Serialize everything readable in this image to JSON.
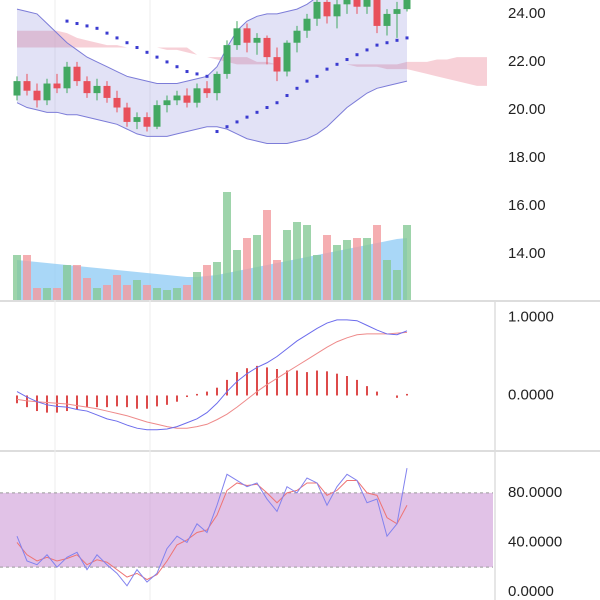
{
  "chart_data": [
    {
      "type": "candlestick",
      "ylim": [
        12.08,
        24.58
      ],
      "yticks": [
        {
          "value": 14,
          "label": "14.00"
        },
        {
          "value": 16,
          "label": "16.00"
        },
        {
          "value": 18,
          "label": "18.00"
        },
        {
          "value": 20,
          "label": "20.00"
        },
        {
          "value": 22,
          "label": "22.00"
        },
        {
          "value": 24,
          "label": "24.00"
        }
      ],
      "up_color": "#43a862",
      "down_color": "#e8505b",
      "open": [
        20.6,
        21.2,
        20.8,
        20.4,
        21.1,
        20.9,
        21.8,
        21.2,
        20.7,
        21.0,
        20.5,
        20.1,
        19.5,
        19.7,
        19.3,
        20.2,
        20.4,
        20.6,
        20.3,
        20.9,
        20.7,
        21.5,
        22.7,
        23.4,
        22.8,
        23.0,
        22.2,
        21.6,
        22.8,
        23.3,
        23.8,
        24.5,
        23.9,
        24.4,
        24.6,
        24.3,
        24.6,
        23.5,
        24.0,
        24.2
      ],
      "high": [
        21.4,
        21.5,
        21.1,
        21.3,
        21.5,
        22.0,
        22.0,
        21.4,
        21.3,
        21.2,
        20.8,
        20.3,
        19.9,
        19.9,
        20.4,
        20.6,
        20.8,
        20.9,
        21.1,
        21.2,
        21.6,
        22.9,
        23.7,
        23.6,
        23.2,
        23.1,
        22.6,
        22.9,
        23.5,
        24.0,
        24.8,
        24.8,
        24.7,
        24.9,
        24.9,
        24.8,
        24.8,
        24.2,
        24.5,
        24.9
      ],
      "low": [
        20.4,
        20.6,
        20.1,
        20.2,
        20.7,
        20.7,
        21.0,
        20.5,
        20.4,
        20.3,
        19.9,
        19.3,
        19.2,
        19.1,
        19.2,
        19.9,
        20.2,
        20.1,
        20.1,
        20.5,
        20.4,
        21.3,
        22.5,
        22.4,
        22.3,
        21.9,
        21.2,
        21.4,
        22.4,
        23.0,
        23.5,
        23.6,
        23.4,
        24.0,
        24.0,
        24.0,
        23.2,
        23.1,
        23.0,
        24.1
      ],
      "close": [
        21.2,
        20.8,
        20.4,
        21.1,
        20.9,
        21.8,
        21.2,
        20.7,
        21.0,
        20.5,
        20.1,
        19.5,
        19.7,
        19.3,
        20.2,
        20.4,
        20.6,
        20.3,
        20.9,
        20.7,
        21.5,
        22.7,
        23.4,
        22.8,
        23.0,
        22.2,
        21.6,
        22.8,
        23.3,
        23.8,
        24.5,
        23.9,
        24.4,
        24.6,
        24.3,
        24.6,
        23.5,
        24.0,
        24.2,
        24.7
      ],
      "volume": [
        45,
        45,
        12,
        12,
        12,
        35,
        35,
        22,
        12,
        15,
        25,
        15,
        20,
        15,
        12,
        10,
        12,
        15,
        28,
        35,
        38,
        108,
        50,
        62,
        65,
        90,
        40,
        70,
        78,
        75,
        45,
        65,
        55,
        60,
        62,
        62,
        75,
        40,
        30,
        75
      ],
      "volume_ma": [
        40,
        39,
        38,
        37,
        36,
        35,
        34,
        33,
        32,
        31,
        30,
        29,
        28,
        27,
        26,
        25,
        24,
        23,
        23,
        24,
        25,
        27,
        29,
        31,
        33,
        35,
        37,
        39,
        41,
        43,
        45,
        47,
        49,
        51,
        53,
        55,
        57,
        59,
        61,
        62
      ],
      "volume_ylim": [
        0,
        110
      ],
      "volume_up_color": "#86c996",
      "volume_down_color": "#f29a9e",
      "volume_ma_color": "#8ccaf4",
      "bollinger_upper": [
        24.2,
        24.1,
        24.0,
        23.6,
        23.2,
        22.8,
        22.5,
        22.2,
        22.0,
        21.8,
        21.6,
        21.4,
        21.3,
        21.2,
        21.1,
        21.1,
        21.1,
        21.2,
        21.3,
        21.4,
        21.8,
        22.6,
        23.3,
        23.7,
        23.9,
        24.0,
        24.0,
        24.1,
        24.2,
        24.4,
        24.7,
        25.0,
        25.2,
        25.3,
        25.3,
        25.3,
        25.2,
        25.1,
        25.0,
        24.9
      ],
      "bollinger_lower": [
        20.3,
        20.1,
        20.0,
        19.9,
        19.9,
        19.8,
        19.8,
        19.7,
        19.6,
        19.5,
        19.4,
        19.2,
        19.0,
        18.9,
        18.9,
        18.9,
        19.0,
        19.1,
        19.2,
        19.3,
        19.3,
        19.2,
        19.0,
        18.8,
        18.7,
        18.6,
        18.6,
        18.6,
        18.7,
        18.8,
        19.0,
        19.3,
        19.7,
        20.1,
        20.4,
        20.7,
        20.9,
        21.0,
        21.1,
        21.2
      ],
      "bollinger_color": "#7c7cd8",
      "sar": [
        null,
        null,
        null,
        null,
        null,
        23.7,
        23.6,
        23.5,
        23.4,
        23.2,
        23.0,
        22.8,
        22.6,
        22.4,
        22.2,
        22.0,
        21.8,
        21.6,
        21.5,
        21.4,
        19.1,
        19.3,
        19.5,
        19.7,
        19.9,
        20.1,
        20.3,
        20.6,
        20.9,
        21.2,
        21.4,
        21.7,
        21.9,
        22.1,
        22.3,
        22.5,
        22.7,
        22.8,
        22.9,
        23.0
      ],
      "sar_color": "#3b3bd0",
      "cloud_a": [
        23.3,
        23.3,
        23.3,
        23.3,
        23.3,
        23.2,
        23.0,
        22.9,
        22.8,
        22.7,
        22.7,
        22.6,
        22.6,
        22.6,
        22.6,
        22.5,
        22.5,
        22.4,
        22.3,
        22.2,
        22.1,
        22.0,
        21.9,
        21.9,
        21.9,
        21.9,
        21.9,
        21.9,
        21.9,
        21.9,
        21.9,
        21.9,
        21.9,
        21.9,
        21.8,
        21.8,
        21.8,
        21.7,
        21.7,
        21.7,
        21.6,
        21.5,
        21.4,
        21.3,
        21.2,
        21.1,
        21.0,
        21.0
      ],
      "cloud_b": [
        22.6,
        22.6,
        22.6,
        22.6,
        22.6,
        22.6,
        22.6,
        22.6,
        22.6,
        22.6,
        22.6,
        22.6,
        22.6,
        22.6,
        22.6,
        22.6,
        22.6,
        22.6,
        22.3,
        22.2,
        22.2,
        22.2,
        22.2,
        22.2,
        22.0,
        22.0,
        21.9,
        21.9,
        21.9,
        21.9,
        21.9,
        21.9,
        21.9,
        21.9,
        21.9,
        21.9,
        21.9,
        21.9,
        21.9,
        22.0,
        22.0,
        22.0,
        22.1,
        22.1,
        22.2,
        22.2,
        22.2,
        22.2
      ],
      "cloud_color": "#f0aab6"
    },
    {
      "type": "macd",
      "ylim": [
        -0.7,
        1.2
      ],
      "yticks": [
        {
          "value": 0,
          "label": "0.0000"
        },
        {
          "value": 1,
          "label": "1.0000"
        }
      ],
      "macd": [
        0.05,
        -0.02,
        -0.08,
        -0.12,
        -0.14,
        -0.15,
        -0.18,
        -0.2,
        -0.25,
        -0.3,
        -0.33,
        -0.38,
        -0.42,
        -0.44,
        -0.44,
        -0.43,
        -0.4,
        -0.35,
        -0.3,
        -0.22,
        -0.1,
        0.05,
        0.18,
        0.28,
        0.36,
        0.42,
        0.5,
        0.6,
        0.7,
        0.78,
        0.86,
        0.93,
        0.97,
        0.97,
        0.96,
        0.9,
        0.84,
        0.79,
        0.78,
        0.83
      ],
      "signal": [
        -0.05,
        -0.07,
        -0.08,
        -0.09,
        -0.1,
        -0.11,
        -0.13,
        -0.15,
        -0.17,
        -0.2,
        -0.23,
        -0.26,
        -0.3,
        -0.34,
        -0.37,
        -0.4,
        -0.42,
        -0.42,
        -0.4,
        -0.37,
        -0.31,
        -0.24,
        -0.15,
        -0.05,
        0.05,
        0.14,
        0.22,
        0.3,
        0.38,
        0.46,
        0.54,
        0.62,
        0.69,
        0.74,
        0.78,
        0.79,
        0.79,
        0.79,
        0.8,
        0.81
      ],
      "histogram": [
        -0.1,
        -0.15,
        -0.2,
        -0.22,
        -0.22,
        -0.2,
        -0.18,
        -0.15,
        -0.15,
        -0.15,
        -0.14,
        -0.15,
        -0.17,
        -0.17,
        -0.14,
        -0.12,
        -0.08,
        -0.02,
        0.02,
        0.05,
        0.1,
        0.2,
        0.3,
        0.35,
        0.38,
        0.36,
        0.34,
        0.32,
        0.32,
        0.3,
        0.32,
        0.31,
        0.28,
        0.25,
        0.2,
        0.12,
        0.05,
        0.0,
        -0.03,
        0.02
      ],
      "macd_color": "#6c6cec",
      "signal_color": "#ee8a8a",
      "histogram_color": "#dd4a4a"
    },
    {
      "type": "rsi",
      "ylim": [
        -6.5,
        113
      ],
      "yticks": [
        {
          "value": 0,
          "label": "0.0000"
        },
        {
          "value": 40,
          "label": "40.0000"
        },
        {
          "value": 80,
          "label": "80.0000"
        }
      ],
      "band": [
        20,
        80
      ],
      "band_color": "#c98fd3",
      "rsi": [
        45,
        25,
        22,
        30,
        20,
        28,
        32,
        18,
        30,
        22,
        15,
        5,
        18,
        8,
        15,
        35,
        45,
        40,
        55,
        48,
        70,
        95,
        90,
        85,
        88,
        75,
        65,
        85,
        80,
        92,
        88,
        70,
        85,
        95,
        90,
        72,
        75,
        45,
        55,
        100
      ],
      "rsi_signal": [
        40,
        30,
        25,
        28,
        25,
        27,
        30,
        22,
        26,
        24,
        18,
        12,
        15,
        10,
        14,
        25,
        38,
        42,
        48,
        50,
        62,
        82,
        88,
        86,
        87,
        80,
        72,
        80,
        82,
        88,
        88,
        78,
        82,
        90,
        90,
        80,
        78,
        60,
        55,
        70
      ],
      "rsi_color": "#8282ee",
      "rsi_signal_color": "#ee7474"
    }
  ]
}
